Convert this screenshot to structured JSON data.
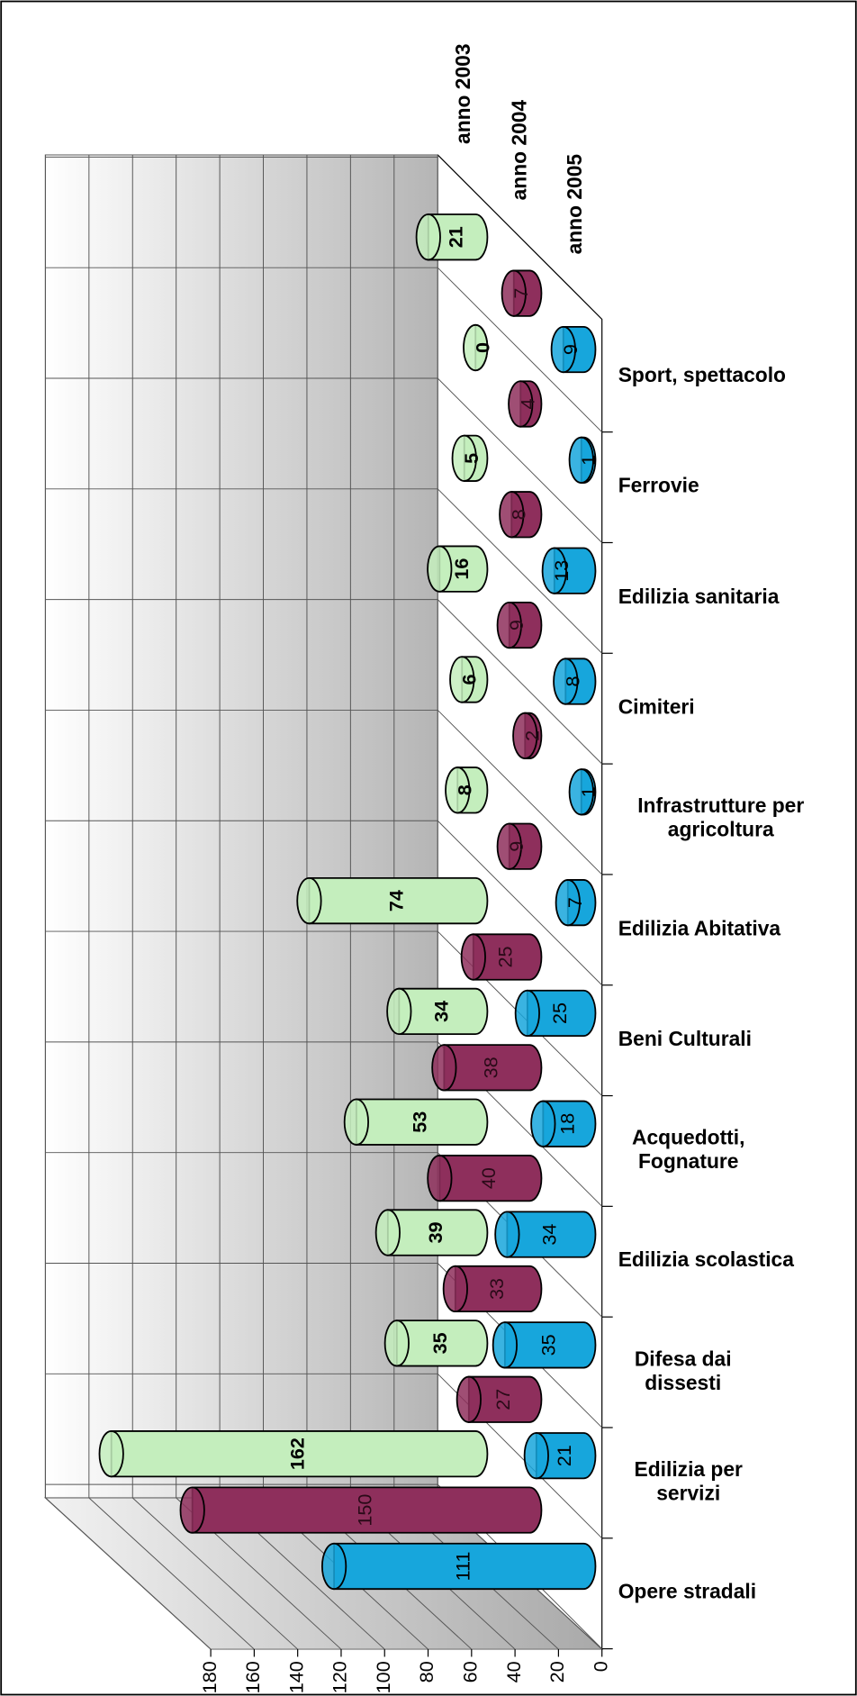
{
  "chart_data": {
    "type": "bar",
    "orientation": "horizontal-3d-cylinder",
    "categories": [
      "Sport, spettacolo",
      "Ferrovie",
      "Edilizia sanitaria",
      "Cimiteri",
      "Infrastrutture per agricoltura",
      "Edilizia Abitativa",
      "Beni Culturali",
      "Acquedotti, Fognature",
      "Edilizia scolastica",
      "Difesa dai dissesti",
      "Edilizia per servizi",
      "Opere stradali"
    ],
    "series": [
      {
        "name": "anno 2003",
        "color": "#c4eebd",
        "values": [
          21,
          0,
          5,
          16,
          6,
          8,
          74,
          34,
          53,
          39,
          35,
          162
        ]
      },
      {
        "name": "anno 2004",
        "color": "#8e2f5c",
        "values": [
          7,
          4,
          8,
          9,
          2,
          9,
          25,
          38,
          40,
          33,
          27,
          150
        ]
      },
      {
        "name": "anno 2005",
        "color": "#17a6dc",
        "values": [
          9,
          1,
          13,
          8,
          1,
          7,
          25,
          18,
          34,
          35,
          21,
          111
        ]
      }
    ],
    "ylim": [
      0,
      180
    ],
    "yticks": [
      0,
      20,
      40,
      60,
      80,
      100,
      120,
      140,
      160,
      180
    ],
    "grid": true
  }
}
